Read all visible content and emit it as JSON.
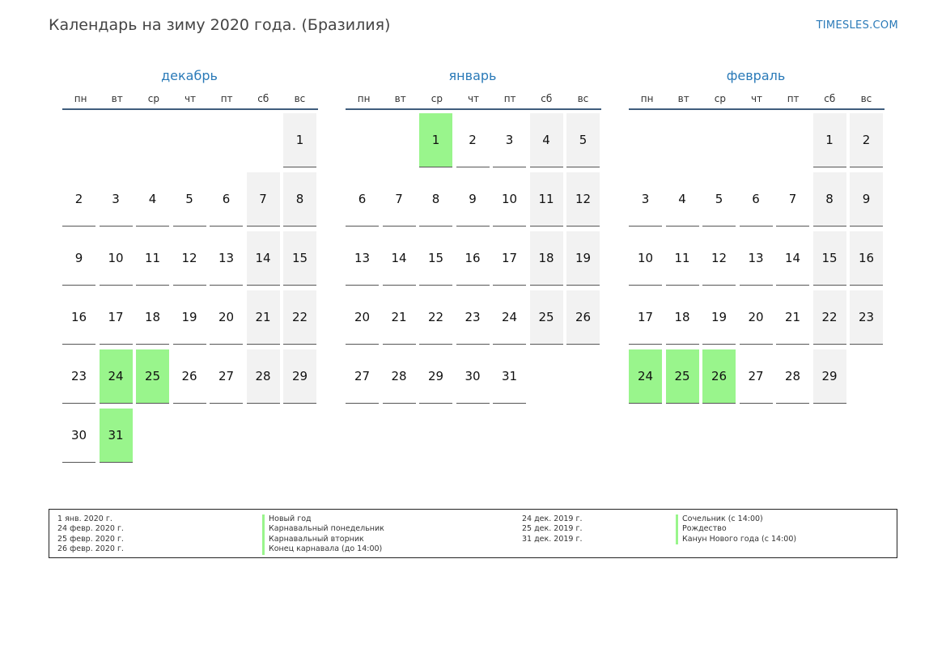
{
  "title": "Календарь на зиму 2020 года. (Бразилия)",
  "brand": "TIMESLES.COM",
  "weekdays": [
    "пн",
    "вт",
    "ср",
    "чт",
    "пт",
    "сб",
    "вс"
  ],
  "months": [
    {
      "name": "декабрь",
      "start_weekday": 6,
      "days": 31,
      "holidays": [
        24,
        25,
        31
      ]
    },
    {
      "name": "январь",
      "start_weekday": 2,
      "days": 31,
      "holidays": [
        1
      ]
    },
    {
      "name": "февраль",
      "start_weekday": 5,
      "days": 29,
      "holidays": [
        24,
        25,
        26
      ]
    }
  ],
  "legend_left": [
    {
      "date": "1 янв. 2020 г.",
      "name": "Новый год"
    },
    {
      "date": "24 февр. 2020 г.",
      "name": "Карнавальный понедельник"
    },
    {
      "date": "25 февр. 2020 г.",
      "name": "Карнавальный вторник"
    },
    {
      "date": "26 февр. 2020 г.",
      "name": "Конец карнавала (до 14:00)"
    }
  ],
  "legend_right": [
    {
      "date": "24 дек. 2019 г.",
      "name": "Сочельник (с 14:00)"
    },
    {
      "date": "25 дек. 2019 г.",
      "name": "Рождество"
    },
    {
      "date": "31 дек. 2019 г.",
      "name": "Канун Нового года (с 14:00)"
    }
  ],
  "colors": {
    "holiday": "#99f58c",
    "weekend": "#f2f2f2",
    "accent": "#2a7ab8"
  }
}
